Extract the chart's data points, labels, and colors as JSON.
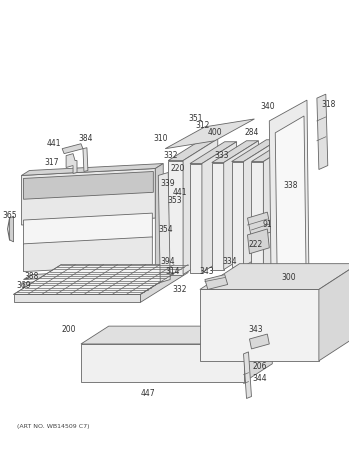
{
  "art_no": "(ART NO. WB14509 C7)",
  "background_color": "#ffffff",
  "line_color": "#666666",
  "label_color": "#333333",
  "label_fontsize": 5.5,
  "figsize": [
    3.5,
    4.53
  ],
  "dpi": 100
}
